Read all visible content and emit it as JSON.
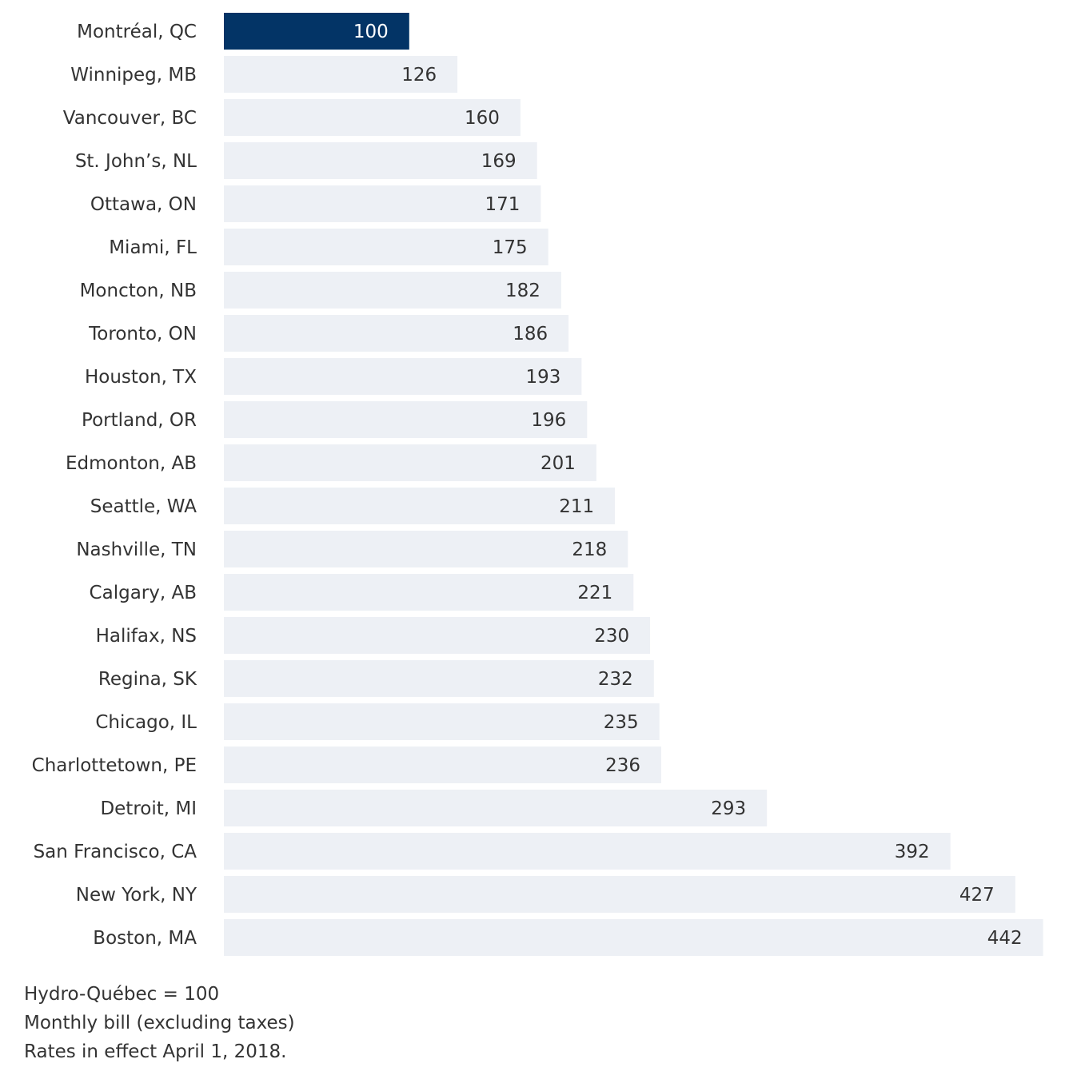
{
  "chart_data": {
    "type": "bar",
    "orientation": "horizontal",
    "categories": [
      "Montréal, QC",
      "Winnipeg, MB",
      "Vancouver, BC",
      "St. John’s, NL",
      "Ottawa, ON",
      "Miami, FL",
      "Moncton, NB",
      "Toronto, ON",
      "Houston, TX",
      "Portland, OR",
      "Edmonton, AB",
      "Seattle, WA",
      "Nashville, TN",
      "Calgary, AB",
      "Halifax, NS",
      "Regina, SK",
      "Chicago, IL",
      "Charlottetown, PE",
      "Detroit, MI",
      "San Francisco, CA",
      "New York, NY",
      "Boston, MA"
    ],
    "values": [
      100,
      126,
      160,
      169,
      171,
      175,
      182,
      186,
      193,
      196,
      201,
      211,
      218,
      221,
      230,
      232,
      235,
      236,
      293,
      392,
      427,
      442
    ],
    "highlight_category": "Montréal, QC",
    "data_labels": true,
    "axis_visible": false,
    "grid": false,
    "colors": {
      "highlight_bar": "#033466",
      "bar": "#edf0f5",
      "highlight_label": "#ffffff",
      "label": "#333333"
    }
  },
  "notes": [
    "Hydro-Québec = 100",
    "Monthly bill (excluding taxes)",
    "Rates in effect April 1, 2018."
  ]
}
